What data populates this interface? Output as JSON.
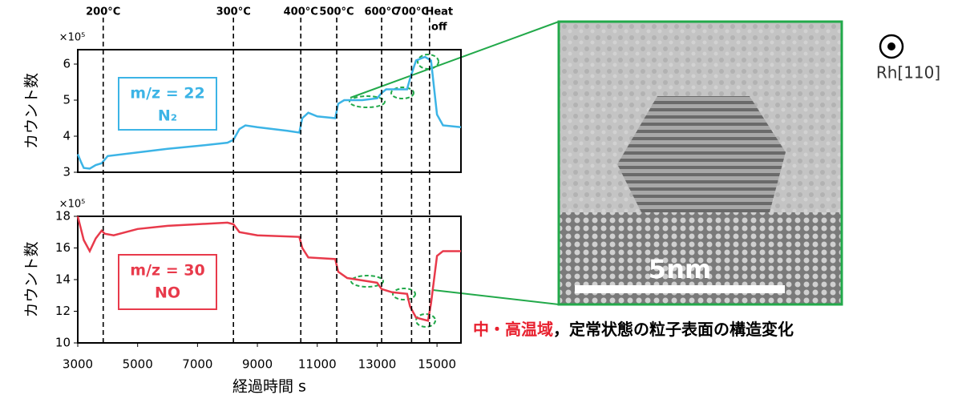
{
  "chart_data": [
    {
      "type": "line",
      "ylabel": "カウント数",
      "multiplier": "×10⁵",
      "xlim": [
        3000,
        15800
      ],
      "ylim": [
        3,
        6.4
      ],
      "yticks": [
        3,
        4,
        5,
        6
      ],
      "x": [
        3000,
        3100,
        3200,
        3400,
        3600,
        3800,
        3900,
        4000,
        5000,
        6000,
        7000,
        8000,
        8200,
        8400,
        8600,
        9000,
        10000,
        10400,
        10500,
        10700,
        11000,
        11600,
        11700,
        11900,
        12500,
        13000,
        13150,
        13300,
        14000,
        14100,
        14300,
        14600,
        14800,
        15000,
        15200,
        15800
      ],
      "series": [
        {
          "name": "m/z = 22",
          "species": "N₂",
          "color": "#3cb4e6",
          "values": [
            3.5,
            3.3,
            3.12,
            3.1,
            3.2,
            3.25,
            3.35,
            3.45,
            3.55,
            3.65,
            3.73,
            3.82,
            3.9,
            4.2,
            4.3,
            4.25,
            4.15,
            4.1,
            4.5,
            4.65,
            4.55,
            4.5,
            4.9,
            5.0,
            5.0,
            5.05,
            5.2,
            5.3,
            5.3,
            5.6,
            6.1,
            6.2,
            6.1,
            4.6,
            4.3,
            4.25
          ]
        }
      ],
      "annotations": [
        {
          "label": [
            "200°C"
          ],
          "x": 3850
        },
        {
          "label": [
            "300°C"
          ],
          "x": 8200
        },
        {
          "label": [
            "400°C"
          ],
          "x": 10450
        },
        {
          "label": [
            "500°C"
          ],
          "x": 11650
        },
        {
          "label": [
            "600°C"
          ],
          "x": 13150
        },
        {
          "label": [
            "700°C"
          ],
          "x": 14150
        },
        {
          "label": [
            "Heat",
            "off"
          ],
          "x": 14750
        }
      ]
    },
    {
      "type": "line",
      "ylabel": "カウント数",
      "multiplier": "×10⁵",
      "xlabel": "経過時間 s",
      "xlim": [
        3000,
        15800
      ],
      "xticks": [
        3000,
        5000,
        7000,
        9000,
        11000,
        13000,
        15000
      ],
      "ylim": [
        10,
        18
      ],
      "yticks": [
        10,
        12,
        14,
        16,
        18
      ],
      "x": [
        3000,
        3200,
        3400,
        3600,
        3800,
        3900,
        4200,
        5000,
        6000,
        7000,
        8000,
        8200,
        8400,
        9000,
        10400,
        10500,
        10700,
        11600,
        11700,
        12000,
        13000,
        13150,
        13500,
        14000,
        14100,
        14300,
        14700,
        14800,
        15000,
        15200,
        15800
      ],
      "series": [
        {
          "name": "m/z = 30",
          "species": "NO",
          "color": "#e83a4b",
          "values": [
            18,
            16.5,
            15.8,
            16.6,
            17.1,
            16.9,
            16.8,
            17.2,
            17.4,
            17.5,
            17.6,
            17.5,
            17.0,
            16.8,
            16.7,
            16.0,
            15.4,
            15.3,
            14.5,
            14.1,
            13.8,
            13.4,
            13.2,
            13.1,
            12.3,
            11.6,
            11.4,
            12.5,
            15.5,
            15.8,
            15.8
          ]
        }
      ]
    }
  ],
  "image": {
    "scale_bar": "5nm",
    "orientation": "Rh[110]"
  },
  "caption": {
    "highlight": "中・高温域",
    "text": "，定常状態の粒子表面の構造変化"
  }
}
